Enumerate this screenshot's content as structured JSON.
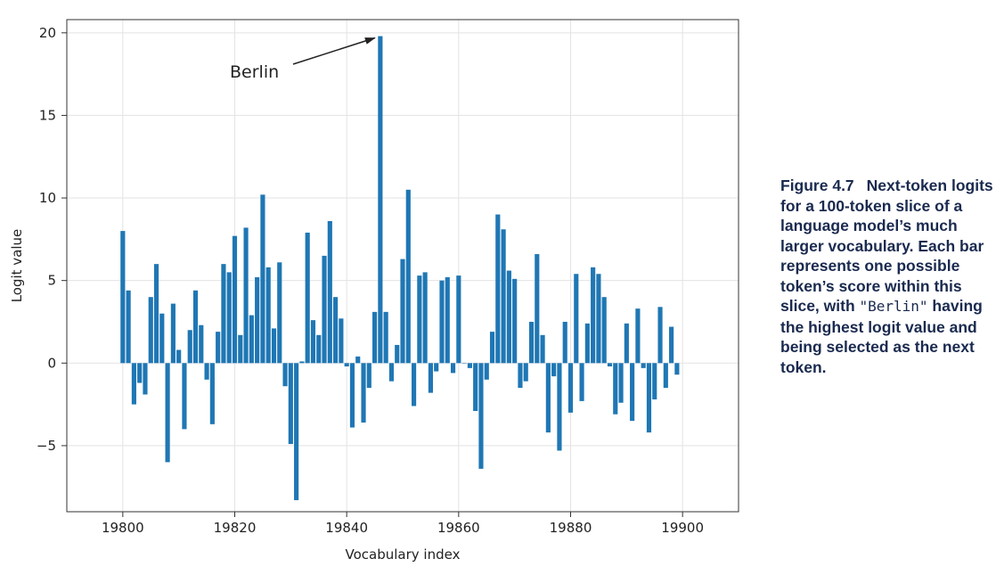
{
  "chart_data": {
    "type": "bar",
    "x_start": 19800,
    "values": [
      8.0,
      4.4,
      -2.5,
      -1.2,
      -1.9,
      4.0,
      6.0,
      3.0,
      -6.0,
      3.6,
      0.8,
      -4.0,
      2.0,
      4.4,
      2.3,
      -1.0,
      -3.7,
      1.9,
      6.0,
      5.5,
      7.7,
      1.7,
      8.2,
      2.9,
      5.2,
      10.2,
      5.8,
      2.1,
      6.1,
      -1.4,
      -4.9,
      -8.3,
      0.1,
      7.9,
      2.6,
      1.7,
      6.5,
      8.6,
      4.0,
      2.7,
      -0.2,
      -3.9,
      0.4,
      -3.6,
      -1.5,
      3.1,
      19.8,
      3.1,
      -1.1,
      1.1,
      6.3,
      10.5,
      -2.6,
      5.3,
      5.5,
      -1.8,
      -0.5,
      5.0,
      5.2,
      -0.6,
      5.3,
      0.0,
      -0.3,
      -2.9,
      -6.4,
      -1.0,
      1.9,
      9.0,
      8.1,
      5.6,
      5.1,
      -1.5,
      -1.1,
      2.5,
      6.6,
      1.7,
      -4.2,
      -0.8,
      -5.3,
      2.5,
      -3.0,
      5.4,
      -2.3,
      2.4,
      5.8,
      5.4,
      4.0,
      -0.2,
      -3.1,
      -2.4,
      2.4,
      -3.5,
      3.3,
      -0.3,
      -4.2,
      -2.2,
      3.4,
      -1.5,
      2.2,
      -0.7
    ],
    "xlabel": "Vocabulary index",
    "ylabel": "Logit value",
    "xlim": [
      19790,
      19910
    ],
    "ylim": [
      -9.0,
      20.8
    ],
    "xticks": [
      "19800",
      "19820",
      "19840",
      "19860",
      "19880",
      "19900"
    ],
    "yticks": [
      "20",
      "15",
      "10",
      "5",
      "0",
      "−5"
    ],
    "grid": true,
    "bar_color": "#1f77b4",
    "annotation": {
      "text": "Berlin",
      "index": 19846,
      "value": 19.8
    }
  },
  "caption": {
    "figure_number": "Figure 4.7",
    "text_before": "Next-token logits for a 100-token slice of a language model’s much larger vocabulary. Each bar represents one possible token’s score within this slice, with ",
    "code": "\"Berlin\"",
    "text_after": " having the highest logit value and being selected as the next token."
  }
}
